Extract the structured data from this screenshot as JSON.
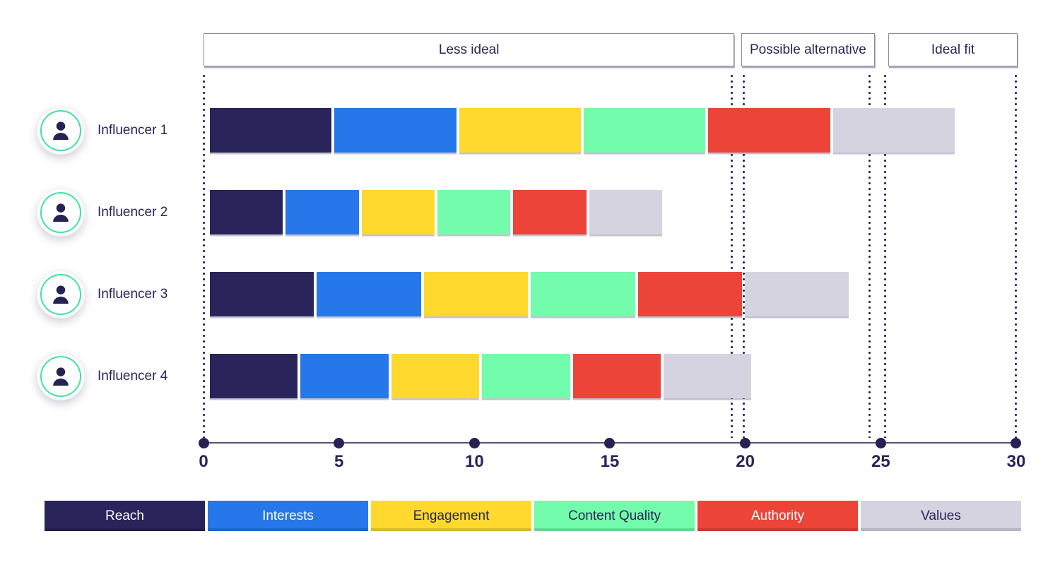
{
  "zones": [
    {
      "label": "Less ideal",
      "from": 0,
      "to": 19.6
    },
    {
      "label": "Possible alternative",
      "from": 19.85,
      "to": 24.78
    },
    {
      "label": "Ideal fit",
      "from": 25.28,
      "to": 30.05
    }
  ],
  "guides": [
    0,
    19.5,
    19.95,
    24.6,
    25.15,
    30
  ],
  "influencers": [
    {
      "name": "Influencer 1"
    },
    {
      "name": "Influencer 2"
    },
    {
      "name": "Influencer 3"
    },
    {
      "name": "Influencer 4"
    }
  ],
  "axis": {
    "ticks": [
      "0",
      "5",
      "10",
      "15",
      "20",
      "25",
      "30"
    ],
    "min": 0,
    "max": 30
  },
  "legend": [
    {
      "label": "Reach",
      "color": "#292459",
      "text_color": "#FFFFFF"
    },
    {
      "label": "Interests",
      "color": "#2577EA",
      "text_color": "#FFFFFF"
    },
    {
      "label": "Engagement",
      "color": "#FFD92D",
      "text_color": "#292459"
    },
    {
      "label": "Content Quality",
      "color": "#73FCAB",
      "text_color": "#292459"
    },
    {
      "label": "Authority",
      "color": "#EC4438",
      "text_color": "#FFFFFF"
    },
    {
      "label": "Values",
      "color": "#D5D3DF",
      "text_color": "#292459"
    }
  ],
  "chart_data": {
    "type": "bar",
    "orientation": "horizontal",
    "stacked": true,
    "categories": [
      "Influencer 1",
      "Influencer 2",
      "Influencer 3",
      "Influencer 4"
    ],
    "series": [
      {
        "name": "Reach",
        "color": "#292459",
        "values": [
          4.6,
          2.8,
          3.95,
          3.35
        ]
      },
      {
        "name": "Interests",
        "color": "#2577EA",
        "values": [
          4.6,
          2.8,
          3.95,
          3.35
        ]
      },
      {
        "name": "Engagement",
        "color": "#FFD92D",
        "values": [
          4.6,
          2.8,
          3.95,
          3.35
        ]
      },
      {
        "name": "Content Quality",
        "color": "#73FCAB",
        "values": [
          4.6,
          2.8,
          3.95,
          3.35
        ]
      },
      {
        "name": "Authority",
        "color": "#EC4438",
        "values": [
          4.6,
          2.8,
          3.95,
          3.35
        ]
      },
      {
        "name": "Values",
        "color": "#D5D3DF",
        "values": [
          4.6,
          2.8,
          3.95,
          3.35
        ]
      }
    ],
    "totals": [
      27.6,
      16.8,
      23.7,
      20.1
    ],
    "xlim": [
      0,
      30
    ],
    "x_ticks": [
      0,
      5,
      10,
      15,
      20,
      25,
      30
    ],
    "zones": [
      {
        "label": "Less ideal",
        "range": [
          0,
          19.6
        ]
      },
      {
        "label": "Possible alternative",
        "range": [
          20,
          24.8
        ]
      },
      {
        "label": "Ideal fit",
        "range": [
          25.2,
          30
        ]
      }
    ],
    "legend_position": "bottom",
    "grid": "dotted-vertical-guides"
  },
  "colors": {
    "text": "#292459",
    "axis_line": "#55527E",
    "zone_border": "#8B89A6",
    "avatar_ring": "#3EE49E",
    "avatar_icon": "#262254",
    "background": "#FFFFFF"
  }
}
